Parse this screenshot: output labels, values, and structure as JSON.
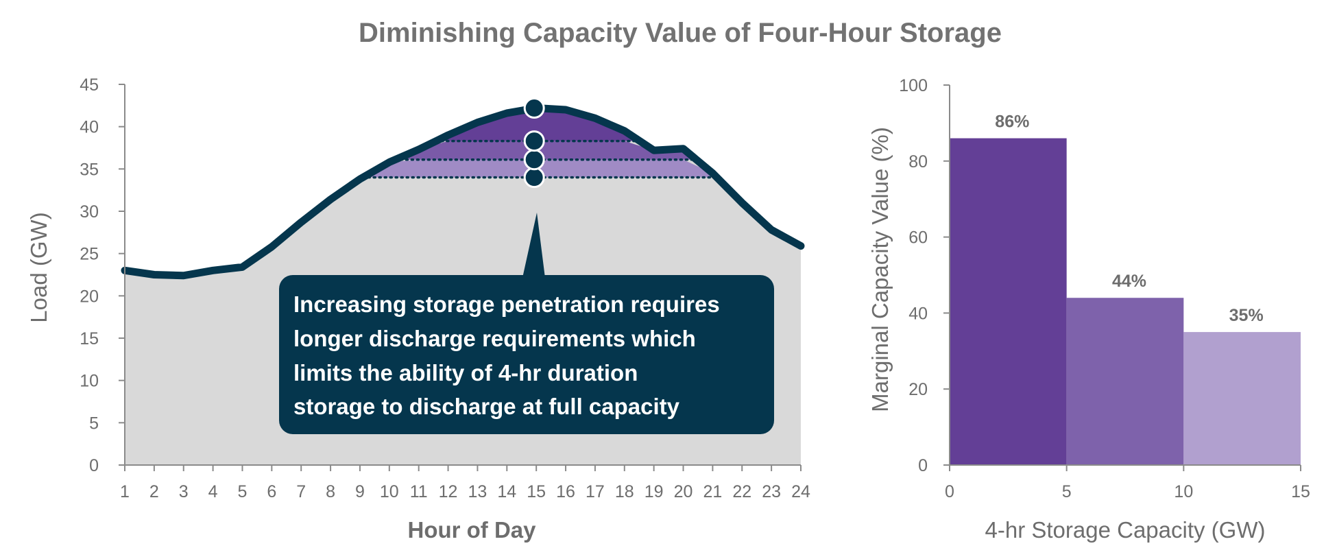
{
  "title": "Diminishing Capacity Value of Four-Hour Storage",
  "colors": {
    "load_area": "#d9d9d9",
    "load_line": "#05364d",
    "tier1": "#633f96",
    "tier2": "#7a5aa8",
    "tier3": "#a08bc5",
    "bar1": "#633f96",
    "bar2": "#7e62ab",
    "bar3": "#b1a0cf",
    "callout": "#05364d",
    "axis": "#8a8a8a",
    "text": "#6d6d6d"
  },
  "callout": {
    "lines": [
      "Increasing storage penetration requires",
      "longer discharge requirements which",
      "limits the ability of 4-hr duration",
      "storage to discharge at full capacity"
    ]
  },
  "chart_data": [
    {
      "type": "area",
      "title": "",
      "xlabel": "Hour of Day",
      "ylabel": "Load (GW)",
      "xlim": [
        1,
        24
      ],
      "ylim": [
        0,
        45
      ],
      "x": [
        1,
        2,
        3,
        4,
        5,
        6,
        7,
        8,
        9,
        10,
        11,
        12,
        13,
        14,
        15,
        16,
        17,
        18,
        19,
        20,
        21,
        22,
        23,
        24
      ],
      "xticks": [
        1,
        2,
        3,
        4,
        5,
        6,
        7,
        8,
        9,
        10,
        11,
        12,
        13,
        14,
        15,
        16,
        17,
        18,
        19,
        20,
        21,
        22,
        23,
        24
      ],
      "yticks": [
        0,
        5,
        10,
        15,
        20,
        25,
        30,
        35,
        40,
        45
      ],
      "series": [
        {
          "values": [
            23.0,
            22.5,
            22.4,
            23.0,
            23.4,
            25.8,
            28.7,
            31.4,
            33.8,
            35.8,
            37.3,
            39.0,
            40.5,
            41.6,
            42.2,
            42.0,
            41.0,
            39.5,
            37.2,
            37.4,
            34.5,
            31.0,
            27.8,
            25.9
          ]
        }
      ],
      "storage_levels": [
        34.0,
        36.1,
        38.3,
        42.2
      ],
      "peak_hour": 15,
      "grid": false
    },
    {
      "type": "bar",
      "title": "",
      "xlabel": "4-hr Storage Capacity (GW)",
      "ylabel": "Marginal Capacity Value (%)",
      "xlim": [
        0,
        15
      ],
      "ylim": [
        0,
        100
      ],
      "xticks": [
        0,
        5,
        10,
        15
      ],
      "yticks": [
        0,
        20,
        40,
        60,
        80,
        100
      ],
      "bins": [
        [
          0,
          5
        ],
        [
          5,
          10
        ],
        [
          10,
          15
        ]
      ],
      "values": [
        86,
        44,
        35
      ],
      "labels": [
        "86%",
        "44%",
        "35%"
      ],
      "grid": false
    }
  ]
}
